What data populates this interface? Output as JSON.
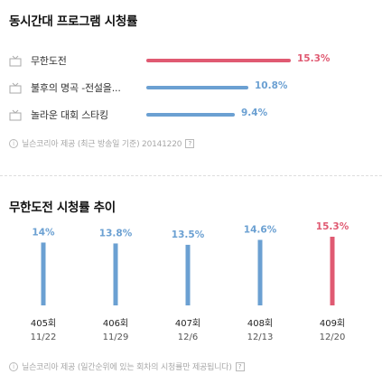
{
  "ratings": {
    "title": "동시간대 프로그램 시청률",
    "programs": [
      {
        "name": "무한도전",
        "rate": "15.3%",
        "value": 15.3,
        "color": "#e05a72"
      },
      {
        "name": "불후의 명곡 -전설을...",
        "rate": "10.8%",
        "value": 10.8,
        "color": "#6ba0d2"
      },
      {
        "name": "놀라운 대회 스타킹",
        "rate": "9.4%",
        "value": 9.4,
        "color": "#6ba0d2"
      }
    ],
    "source": "닐슨코리아 제공 (최근 방송일 기준) 20141220",
    "help_glyph": "?"
  },
  "trend": {
    "title": "무한도전 시청률 추이",
    "source": "닐슨코리아 제공 (일간순위에 있는 회차의 시청률만 제공됩니다)",
    "help_glyph": "?"
  },
  "chart_data": [
    {
      "type": "bar",
      "title": "동시간대 프로그램 시청률",
      "orientation": "horizontal",
      "categories": [
        "무한도전",
        "불후의 명곡 -전설을...",
        "놀라운 대회 스타킹"
      ],
      "values": [
        15.3,
        10.8,
        9.4
      ],
      "labels": [
        "15.3%",
        "10.8%",
        "9.4%"
      ],
      "colors": [
        "#e05a72",
        "#6ba0d2",
        "#6ba0d2"
      ]
    },
    {
      "type": "bar",
      "title": "무한도전 시청률 추이",
      "categories": [
        "405회",
        "406회",
        "407회",
        "408회",
        "409회"
      ],
      "dates": [
        "11/22",
        "11/29",
        "12/6",
        "12/13",
        "12/20"
      ],
      "values": [
        14,
        13.8,
        13.5,
        14.6,
        15.3
      ],
      "labels": [
        "14%",
        "13.8%",
        "13.5%",
        "14.6%",
        "15.3%"
      ],
      "colors": [
        "#6ba0d2",
        "#6ba0d2",
        "#6ba0d2",
        "#6ba0d2",
        "#e05a72"
      ],
      "ylim": [
        0,
        15.3
      ]
    }
  ]
}
